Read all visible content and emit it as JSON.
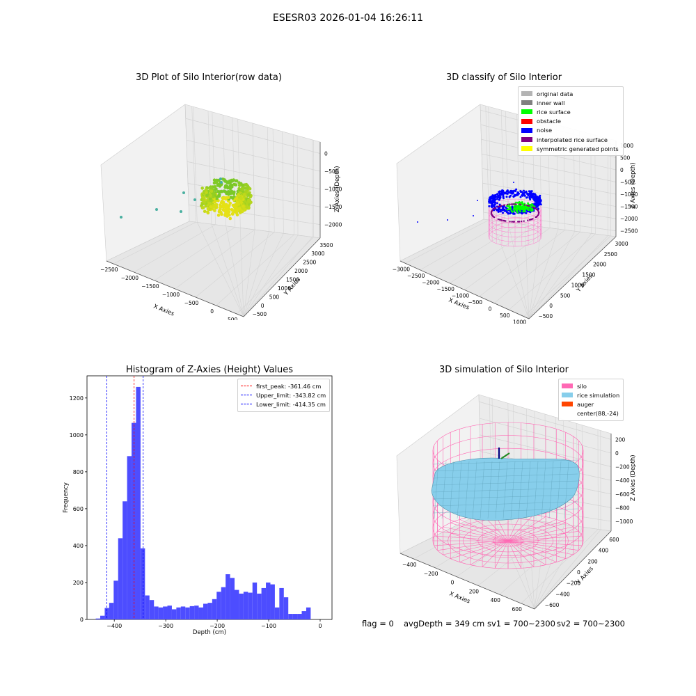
{
  "suptitle": "ESESR03 2026-01-04 16:26:11",
  "colors": {
    "hist_bar": "#4d4dff",
    "peak_line": "#ff0000",
    "limit_line": "#0000ff"
  },
  "status": {
    "flag": "flag = 0",
    "avg_depth": "avgDepth = 349 cm",
    "sv1": "sv1 = 700~2300",
    "sv2": "sv2 = 700~2300"
  },
  "chart_data": [
    {
      "type": "scatter",
      "projection": "3d",
      "title": "3D Plot of Silo Interior(row data)",
      "xlabel": "X Axies",
      "ylabel": "Y Axies",
      "zlabel": "Z Axies (Depth)",
      "x_ticks": [
        "−2500",
        "−2000",
        "−1500",
        "−1000",
        "−500",
        "0",
        "500"
      ],
      "y_ticks": [
        "−500",
        "0",
        "500",
        "1000",
        "1500",
        "2000",
        "2500",
        "3000",
        "3500"
      ],
      "z_ticks": [
        "0",
        "−500",
        "−1000",
        "−1500",
        "−2000"
      ],
      "colormap": "viridis-like (green to yellow)"
    },
    {
      "type": "scatter",
      "projection": "3d",
      "title": "3D classify of Silo Interior",
      "xlabel": "X Axies",
      "ylabel": "Y Axies",
      "zlabel": "Z Axies (Depth)",
      "x_ticks": [
        "−3000",
        "−2500",
        "−2000",
        "−1500",
        "−1000",
        "−500",
        "0",
        "500",
        "1000"
      ],
      "y_ticks": [
        "−500",
        "0",
        "500",
        "1000",
        "1500",
        "2000",
        "2500",
        "3000"
      ],
      "z_ticks": [
        "1000",
        "500",
        "0",
        "−500",
        "−1000",
        "−1500",
        "−2000",
        "−2500"
      ],
      "legend_position": "upper right",
      "legend": [
        {
          "label": "original data",
          "color": "#b4b4b4"
        },
        {
          "label": "inner wall",
          "color": "#808080"
        },
        {
          "label": "rice surface",
          "color": "#00ff00"
        },
        {
          "label": "obstacle",
          "color": "#ff0000"
        },
        {
          "label": "noise",
          "color": "#0000ff"
        },
        {
          "label": "interpolated rice surface",
          "color": "#800080"
        },
        {
          "label": "symmetric generated points",
          "color": "#ffff00"
        }
      ]
    },
    {
      "type": "bar",
      "title": "Histogram of Z-Axies (Height) Values",
      "xlabel": "Depth (cm)",
      "ylabel": "Frequency",
      "xlim": [
        -453,
        23
      ],
      "ylim": [
        0,
        1320
      ],
      "x_ticks": [
        -400,
        -300,
        -200,
        -100,
        0
      ],
      "x_tick_labels": [
        "−400",
        "−300",
        "−200",
        "−100",
        "0"
      ],
      "y_ticks": [
        0,
        200,
        400,
        600,
        800,
        1000,
        1200
      ],
      "bin_start": -436,
      "bin_width": 8.7,
      "values": [
        5,
        20,
        62,
        90,
        210,
        440,
        640,
        885,
        1065,
        1260,
        385,
        130,
        105,
        70,
        65,
        70,
        75,
        55,
        65,
        70,
        65,
        72,
        75,
        65,
        85,
        90,
        110,
        150,
        175,
        245,
        225,
        160,
        140,
        150,
        145,
        200,
        140,
        170,
        200,
        190,
        65,
        170,
        120,
        30,
        30,
        30,
        45,
        65
      ],
      "vlines": [
        {
          "x": -361.46,
          "label": "first_peak: -361.46 cm",
          "color": "#ff0000"
        },
        {
          "x": -343.82,
          "label": "Upper_limit: -343.82 cm",
          "color": "#0000ff"
        },
        {
          "x": -414.35,
          "label": "Lower_limit: -414.35 cm",
          "color": "#0000ff"
        }
      ],
      "legend_position": "upper right"
    },
    {
      "type": "surface",
      "projection": "3d",
      "title": "3D simulation of Silo Interior",
      "xlabel": "X Axies",
      "ylabel": "Y Axies",
      "zlabel": "Z Axies (Depth)",
      "x_ticks": [
        "−400",
        "−200",
        "0",
        "200",
        "400",
        "600"
      ],
      "y_ticks": [
        "−600",
        "−400",
        "−200",
        "0",
        "200",
        "400",
        "600"
      ],
      "z_ticks": [
        "200",
        "0",
        "−200",
        "−400",
        "−600",
        "−800",
        "−1000"
      ],
      "legend_position": "upper right",
      "legend": [
        {
          "label": "silo",
          "color": "#ff69b4"
        },
        {
          "label": "rice simulation",
          "color": "#87ceeb"
        },
        {
          "label": "auger",
          "color": "#ff4500"
        },
        {
          "label": "center(88,-24)",
          "color": ""
        }
      ]
    }
  ]
}
